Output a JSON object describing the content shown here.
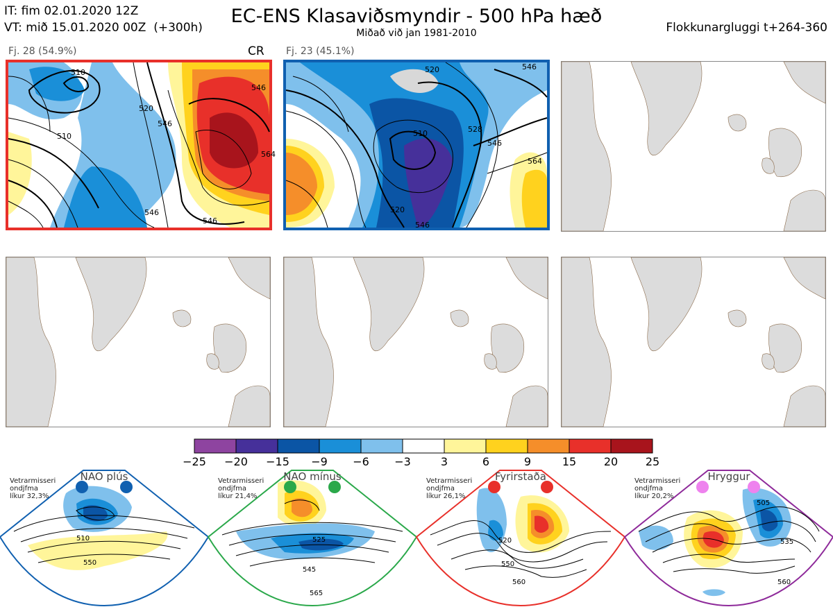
{
  "header": {
    "it_line": "IT: fim 02.01.2020 12Z",
    "vt_line": "VT: mið 15.01.2020 00Z  (+300h)",
    "title": "EC-ENS Klasaviðsmyndir - 500 hPa hæð",
    "subtitle": "Miðað við jan 1981-2010",
    "window": "Flokkunargluggi t+264-360"
  },
  "panels": [
    {
      "label": "Fj. 28 (54.9%)",
      "regime": "CR",
      "border": "#e8302a"
    },
    {
      "label": "Fj. 23 (45.1%)",
      "regime": "",
      "border": "#1060b0"
    },
    {
      "label": "",
      "regime": "",
      "border": ""
    },
    {
      "label": "",
      "regime": "",
      "border": ""
    },
    {
      "label": "",
      "regime": "",
      "border": ""
    },
    {
      "label": "",
      "regime": "",
      "border": ""
    }
  ],
  "contour_labels": {
    "p1": [
      "510",
      "520",
      "546",
      "546",
      "564",
      "546",
      "546",
      "510"
    ],
    "p2": [
      "510",
      "520",
      "528",
      "546",
      "564",
      "546",
      "520",
      "546"
    ]
  },
  "colorbar": {
    "ticks": [
      "−25",
      "−20",
      "−15",
      "−9",
      "−6",
      "−3",
      "3",
      "6",
      "9",
      "15",
      "20",
      "25"
    ],
    "colors": [
      "#8e44a0",
      "#46309a",
      "#0b55a5",
      "#1a8fd8",
      "#7fc0ec",
      "#ffffff",
      "#fff59a",
      "#ffd21e",
      "#f58e2a",
      "#e8302a",
      "#a8141c"
    ]
  },
  "regimes": [
    {
      "title": "NAO plús",
      "note": [
        "Vetrarmisseri",
        "ondjfma",
        "líkur 32,3%"
      ],
      "color": "#1060b0",
      "dot": "#1060b0",
      "contours": [
        "510",
        "550"
      ]
    },
    {
      "title": "NAO mínus",
      "note": [
        "Vetrarmisseri",
        "ondjfma",
        "líkur 21,4%"
      ],
      "color": "#2aa84a",
      "dot": "#2aa84a",
      "contours": [
        "525",
        "545",
        "565"
      ]
    },
    {
      "title": "Fyrirstaða",
      "note": [
        "Vetrarmisseri",
        "ondjfma",
        "líkur 26,1%"
      ],
      "color": "#e8302a",
      "dot": "#e8302a",
      "contours": [
        "520",
        "550",
        "560"
      ]
    },
    {
      "title": "Hryggur",
      "note": [
        "Vetrarmisseri",
        "ondjfma",
        "líkur 20,2%"
      ],
      "color": "#8e2a9a",
      "dot": "#ee82ee",
      "contours": [
        "505",
        "535",
        "560"
      ]
    }
  ]
}
